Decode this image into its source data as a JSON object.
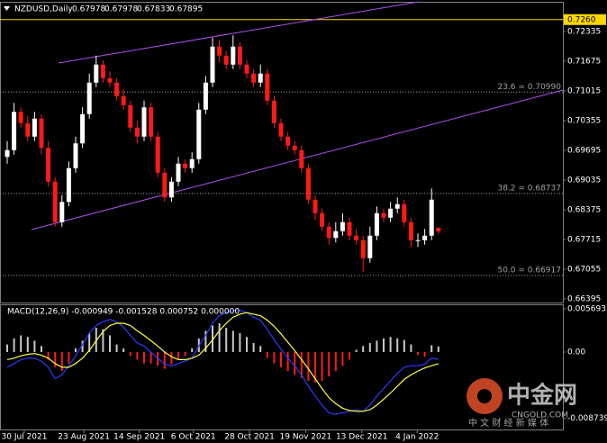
{
  "chart_data": [
    {
      "type": "candlestick",
      "header": "NZDUSD,Daily",
      "header_values": [
        "0.67978",
        "0.67978",
        "0.67833",
        "0.67895"
      ],
      "up_color": "#ffffff",
      "down_color": "#ff1a1a",
      "open": [
        0.6955,
        0.697,
        0.7055,
        0.703,
        0.7,
        0.704,
        0.6975,
        0.69,
        0.681,
        0.6855,
        0.693,
        0.6985,
        0.705,
        0.712,
        0.716,
        0.713,
        0.712,
        0.709,
        0.707,
        0.702,
        0.7,
        0.7065,
        0.7,
        0.692,
        0.6865,
        0.69,
        0.694,
        0.693,
        0.695,
        0.706,
        0.712,
        0.72,
        0.718,
        0.716,
        0.72,
        0.716,
        0.714,
        0.712,
        0.714,
        0.708,
        0.703,
        0.7,
        0.698,
        0.697,
        0.693,
        0.686,
        0.683,
        0.68,
        0.6775,
        0.679,
        0.681,
        0.678,
        0.677,
        0.673,
        0.678,
        0.683,
        0.682,
        0.684,
        0.685,
        0.681,
        0.677,
        0.677,
        0.678,
        0.67978
      ],
      "high": [
        0.699,
        0.7075,
        0.7065,
        0.7045,
        0.7055,
        0.705,
        0.699,
        0.691,
        0.687,
        0.6945,
        0.7,
        0.7065,
        0.714,
        0.718,
        0.717,
        0.7145,
        0.713,
        0.7105,
        0.708,
        0.7035,
        0.708,
        0.7075,
        0.701,
        0.693,
        0.691,
        0.6955,
        0.695,
        0.6965,
        0.7075,
        0.7135,
        0.722,
        0.7215,
        0.719,
        0.7225,
        0.721,
        0.717,
        0.715,
        0.716,
        0.715,
        0.709,
        0.704,
        0.701,
        0.699,
        0.698,
        0.694,
        0.687,
        0.684,
        0.681,
        0.681,
        0.683,
        0.682,
        0.6795,
        0.678,
        0.68,
        0.6845,
        0.684,
        0.6855,
        0.6865,
        0.686,
        0.682,
        0.6785,
        0.6795,
        0.6885,
        0.67978
      ],
      "low": [
        0.694,
        0.696,
        0.702,
        0.699,
        0.699,
        0.696,
        0.689,
        0.68,
        0.68,
        0.6845,
        0.692,
        0.6975,
        0.704,
        0.711,
        0.712,
        0.711,
        0.708,
        0.706,
        0.701,
        0.6985,
        0.699,
        0.699,
        0.691,
        0.6855,
        0.6855,
        0.689,
        0.692,
        0.692,
        0.694,
        0.705,
        0.711,
        0.7165,
        0.715,
        0.715,
        0.715,
        0.713,
        0.711,
        0.711,
        0.707,
        0.702,
        0.699,
        0.697,
        0.696,
        0.692,
        0.685,
        0.6815,
        0.679,
        0.676,
        0.6765,
        0.678,
        0.677,
        0.676,
        0.67,
        0.672,
        0.677,
        0.681,
        0.681,
        0.683,
        0.68,
        0.6755,
        0.6755,
        0.676,
        0.677,
        0.67833
      ],
      "close": [
        0.697,
        0.7055,
        0.703,
        0.7,
        0.704,
        0.6975,
        0.69,
        0.681,
        0.6855,
        0.693,
        0.6985,
        0.705,
        0.712,
        0.716,
        0.713,
        0.712,
        0.709,
        0.707,
        0.702,
        0.7,
        0.7065,
        0.7,
        0.692,
        0.6865,
        0.69,
        0.694,
        0.693,
        0.695,
        0.706,
        0.712,
        0.72,
        0.718,
        0.716,
        0.72,
        0.716,
        0.714,
        0.712,
        0.714,
        0.708,
        0.703,
        0.7,
        0.698,
        0.697,
        0.693,
        0.686,
        0.683,
        0.68,
        0.6775,
        0.679,
        0.681,
        0.678,
        0.677,
        0.673,
        0.678,
        0.683,
        0.682,
        0.684,
        0.685,
        0.681,
        0.677,
        0.677,
        0.678,
        0.686,
        0.67895
      ],
      "xlim": [
        -1.05,
        81.18
      ],
      "xticks": [
        {
          "value": 2.5,
          "label": "30 Jul 2021"
        },
        {
          "value": 11.2,
          "label": "23 Aug 2021"
        },
        {
          "value": 19.3,
          "label": "14 Sep 2021"
        },
        {
          "value": 27.2,
          "label": "6 Oct 2021"
        },
        {
          "value": 35.4,
          "label": "28 Oct 2021"
        },
        {
          "value": 43.6,
          "label": "19 Nov 2021"
        },
        {
          "value": 51.8,
          "label": "13 Dec 2021"
        },
        {
          "value": 59.9,
          "label": "4 Jan 2022"
        }
      ],
      "ylim": [
        0.66315,
        0.72995
      ],
      "yticks": [
        0.72335,
        0.71675,
        0.71015,
        0.70355,
        0.69695,
        0.69035,
        0.68375,
        0.67715,
        0.67055,
        0.66395
      ],
      "hlines": [
        {
          "value": 0.726,
          "label": "0.7260",
          "color": "#ffd700"
        }
      ],
      "fib_levels": [
        {
          "value": 0.7099,
          "label": "23.6 = 0.70990"
        },
        {
          "value": 0.68737,
          "label": "38.2 = 0.68737"
        },
        {
          "value": 0.66917,
          "label": "50.0 = 0.66917"
        }
      ],
      "fib_color": "#a0a0a0",
      "trendlines": [
        {
          "x": [
            7.5,
            60.1
          ],
          "y": [
            0.71635,
            0.72995
          ],
          "color": "#b050f0"
        },
        {
          "x": [
            3.55,
            81.2
          ],
          "y": [
            0.67935,
            0.71035
          ],
          "color": "#b050f0"
        }
      ]
    },
    {
      "type": "macd",
      "label": "MACD(12,26,9) -0.000949 -0.001528 0.000752 0.000000",
      "ylim": [
        -0.01032,
        0.00629
      ],
      "yticks": [
        0.005693,
        {
          "value": 0,
          "label": "0.00"
        },
        -0.008739
      ],
      "series": [
        {
          "kind": "histogram",
          "color": "#c8c8c8",
          "negative_color": "#ff1a1a",
          "values": [
            0.001,
            0.0018,
            0.0022,
            0.002,
            0.0015,
            0.0008,
            -0.001,
            -0.002,
            -0.0025,
            -0.0015,
            0.0005,
            0.0015,
            0.0025,
            0.0032,
            0.003,
            0.0022,
            0.001,
            0.0005,
            -0.0005,
            -0.001,
            -0.0015,
            -0.0015,
            -0.0018,
            -0.0022,
            -0.0016,
            -0.001,
            -0.0005,
            0.0005,
            0.0018,
            0.0028,
            0.0035,
            0.0038,
            0.0032,
            0.0028,
            0.0025,
            0.002,
            0.0012,
            0.0008,
            -0.0008,
            -0.0015,
            -0.002,
            -0.0025,
            -0.003,
            -0.0034,
            -0.0038,
            -0.004,
            -0.0038,
            -0.0032,
            -0.0025,
            -0.0018,
            -0.001,
            0.0003,
            0.0008,
            0.0012,
            0.0015,
            0.0018,
            0.002,
            0.0018,
            0.0016,
            0.001,
            -0.0004,
            -0.0006,
            0.0009,
            0.000752
          ]
        },
        {
          "kind": "line",
          "color": "#2a3cff",
          "values": [
            -0.002,
            -0.0015,
            -0.001,
            -0.0008,
            -0.0008,
            -0.0012,
            -0.002,
            -0.0035,
            -0.003,
            -0.0018,
            -0.0005,
            0.001,
            0.0025,
            0.0035,
            0.004,
            0.0043,
            0.004,
            0.0033,
            0.0022,
            0.0012,
            0.0008,
            0.0,
            -0.0008,
            -0.0016,
            -0.0018,
            -0.0015,
            -0.0012,
            -0.0008,
            0.0008,
            0.0022,
            0.0038,
            0.0048,
            0.0052,
            0.0055,
            0.0055,
            0.0052,
            0.0046,
            0.0042,
            0.003,
            0.0016,
            0.0004,
            -0.0008,
            -0.0018,
            -0.003,
            -0.0045,
            -0.0058,
            -0.007,
            -0.008,
            -0.0082,
            -0.008,
            -0.0078,
            -0.0076,
            -0.0078,
            -0.007,
            -0.0058,
            -0.0048,
            -0.0038,
            -0.0028,
            -0.002,
            -0.0018,
            -0.0018,
            -0.0016,
            -0.0008,
            -0.000949
          ]
        },
        {
          "kind": "line",
          "color": "#ffff40",
          "values": [
            -0.001,
            -0.0008,
            -0.0005,
            -0.0003,
            -0.0002,
            -0.0004,
            -0.0008,
            -0.0015,
            -0.002,
            -0.002,
            -0.0015,
            -0.0008,
            0.0002,
            0.0015,
            0.0027,
            0.0035,
            0.0038,
            0.0038,
            0.0035,
            0.0028,
            0.0022,
            0.0015,
            0.0008,
            0.0,
            -0.0006,
            -0.001,
            -0.001,
            -0.0008,
            -0.0004,
            0.0005,
            0.0016,
            0.0028,
            0.0038,
            0.0046,
            0.005,
            0.0052,
            0.005,
            0.0048,
            0.0042,
            0.0034,
            0.0024,
            0.0013,
            0.0002,
            -0.001,
            -0.0022,
            -0.0035,
            -0.0048,
            -0.006,
            -0.0068,
            -0.0074,
            -0.0077,
            -0.0078,
            -0.0078,
            -0.0076,
            -0.007,
            -0.0062,
            -0.0054,
            -0.0045,
            -0.0036,
            -0.003,
            -0.0025,
            -0.0021,
            -0.0018,
            -0.001528
          ]
        }
      ]
    }
  ],
  "watermark": {
    "title": "中金网",
    "site": "CNGOLD.COM",
    "tagline": "中 文 财 经 新 媒 体"
  }
}
